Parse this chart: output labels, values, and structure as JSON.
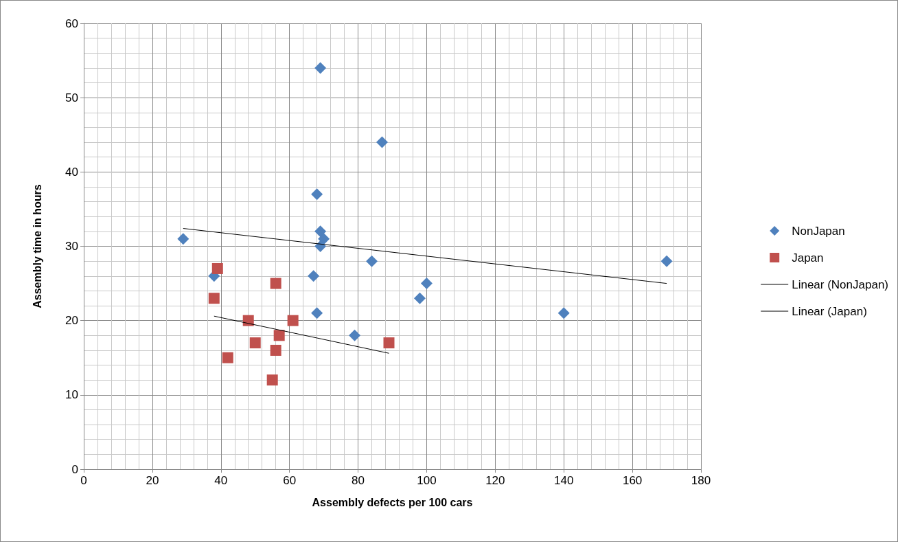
{
  "chart_data": {
    "type": "scatter",
    "xlabel": "Assembly defects per 100 cars",
    "ylabel": "Assembly time in hours",
    "xlim": [
      0,
      180
    ],
    "xticks": [
      0,
      20,
      40,
      60,
      80,
      100,
      120,
      140,
      160,
      180
    ],
    "ylim": [
      0,
      60
    ],
    "yticks": [
      0,
      10,
      20,
      30,
      40,
      50,
      60
    ],
    "grid": true,
    "legend": "right",
    "series": [
      {
        "name": "NonJapan",
        "marker": "diamond",
        "color": "#4f81bd",
        "x": [
          29,
          38,
          69,
          87,
          68,
          69,
          70,
          69,
          84,
          67,
          68,
          79,
          98,
          100,
          140,
          170
        ],
        "values": [
          31,
          26,
          54,
          44,
          37,
          32,
          31,
          30,
          28,
          26,
          21,
          18,
          23,
          25,
          21,
          28
        ]
      },
      {
        "name": "Japan",
        "marker": "square",
        "color": "#c0504d",
        "x": [
          39,
          38,
          56,
          48,
          61,
          57,
          50,
          56,
          42,
          55,
          89
        ],
        "values": [
          27,
          23,
          25,
          20,
          20,
          18,
          17,
          16,
          15,
          12,
          17
        ]
      },
      {
        "name": "Linear (NonJapan)",
        "type": "line",
        "marker": "none",
        "color": "#000000",
        "x": [
          29,
          170
        ],
        "values": [
          32.4,
          25.0
        ]
      },
      {
        "name": "Linear (Japan)",
        "type": "line",
        "marker": "none",
        "color": "#000000",
        "x": [
          38,
          89
        ],
        "values": [
          20.6,
          15.6
        ]
      }
    ]
  }
}
